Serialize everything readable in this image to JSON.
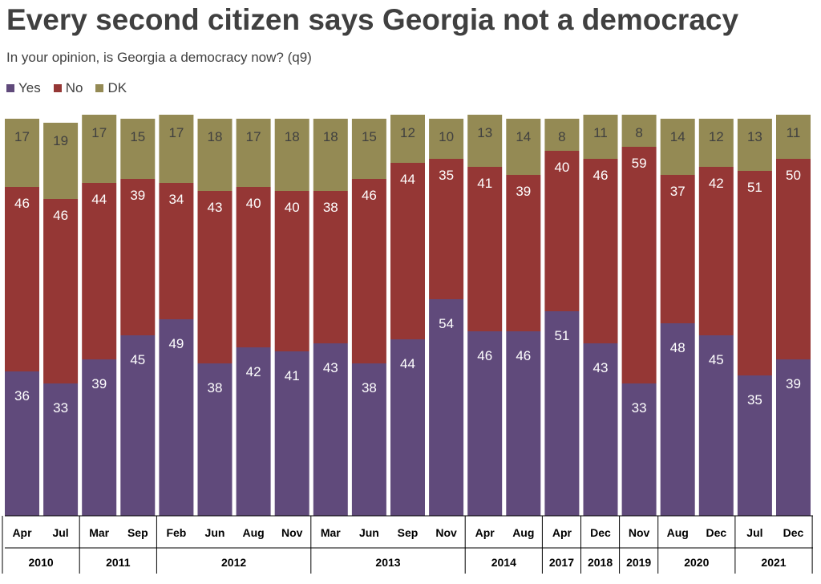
{
  "chart_data": {
    "type": "bar",
    "stacked": true,
    "title": "Every second citizen says Georgia not a democracy",
    "subtitle": "In your opinion, is Georgia a democracy now? (q9)",
    "ylim": [
      0,
      100
    ],
    "legend_position": "top-left",
    "series": [
      {
        "name": "Yes",
        "color": "#604a7b",
        "label_color": "#ffffff",
        "values": [
          36,
          33,
          39,
          45,
          49,
          38,
          42,
          41,
          43,
          38,
          44,
          54,
          46,
          46,
          51,
          43,
          33,
          48,
          45,
          35,
          39
        ]
      },
      {
        "name": "No",
        "color": "#953735",
        "label_color": "#ffffff",
        "values": [
          46,
          46,
          44,
          39,
          34,
          43,
          40,
          40,
          38,
          46,
          44,
          35,
          41,
          39,
          40,
          46,
          59,
          37,
          42,
          51,
          50
        ]
      },
      {
        "name": "DK",
        "color": "#948a54",
        "label_color": "#404040",
        "values": [
          17,
          19,
          17,
          15,
          17,
          18,
          17,
          18,
          18,
          15,
          12,
          10,
          13,
          14,
          8,
          11,
          8,
          14,
          12,
          13,
          11
        ]
      }
    ],
    "categories": [
      "Apr",
      "Jul",
      "Mar",
      "Sep",
      "Feb",
      "Jun",
      "Aug",
      "Nov",
      "Mar",
      "Jun",
      "Sep",
      "Nov",
      "Apr",
      "Aug",
      "Apr",
      "Dec",
      "Nov",
      "Aug",
      "Dec",
      "Jul",
      "Dec"
    ],
    "years": [
      {
        "label": "2010",
        "count": 2
      },
      {
        "label": "2011",
        "count": 2
      },
      {
        "label": "2012",
        "count": 4
      },
      {
        "label": "2013",
        "count": 4
      },
      {
        "label": "2014",
        "count": 2
      },
      {
        "label": "2017",
        "count": 1
      },
      {
        "label": "2018",
        "count": 1
      },
      {
        "label": "2019",
        "count": 1
      },
      {
        "label": "2020",
        "count": 2
      },
      {
        "label": "2021",
        "count": 2
      }
    ]
  }
}
